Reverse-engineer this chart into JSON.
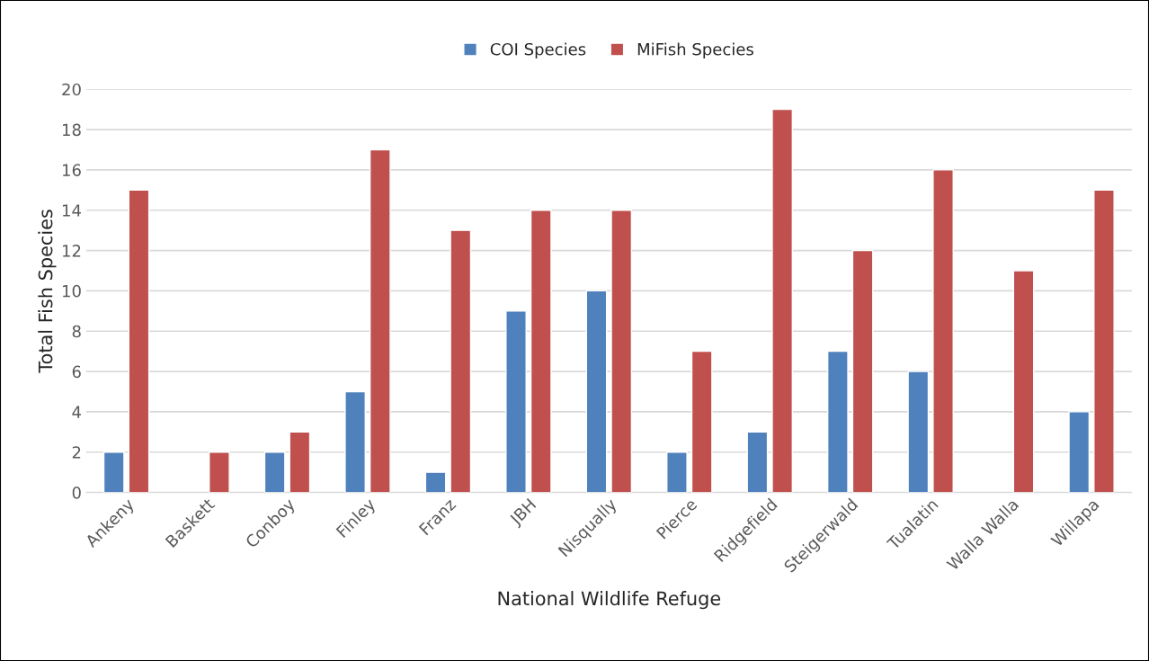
{
  "chart_data": {
    "type": "bar",
    "xlabel": "National Wildlife Refuge",
    "ylabel": "Total Fish Species",
    "categories": [
      "Ankeny",
      "Baskett",
      "Conboy",
      "Finley",
      "Franz",
      "JBH",
      "Nisqually",
      "Pierce",
      "Ridgefield",
      "Steigerwald",
      "Tualatin",
      "Walla Walla",
      "Willapa"
    ],
    "series": [
      {
        "name": "COI Species",
        "color": "#4f81bd",
        "values": [
          2,
          null,
          2,
          5,
          1,
          9,
          10,
          2,
          3,
          7,
          6,
          null,
          4
        ]
      },
      {
        "name": "MiFish Species",
        "color": "#c0504d",
        "values": [
          15,
          2,
          3,
          17,
          13,
          14,
          14,
          7,
          19,
          12,
          16,
          11,
          15
        ]
      }
    ],
    "ylim": [
      0,
      20
    ],
    "yticks": [
      0,
      2,
      4,
      6,
      8,
      10,
      12,
      14,
      16,
      18,
      20
    ],
    "grid": "y",
    "legend": "top"
  }
}
